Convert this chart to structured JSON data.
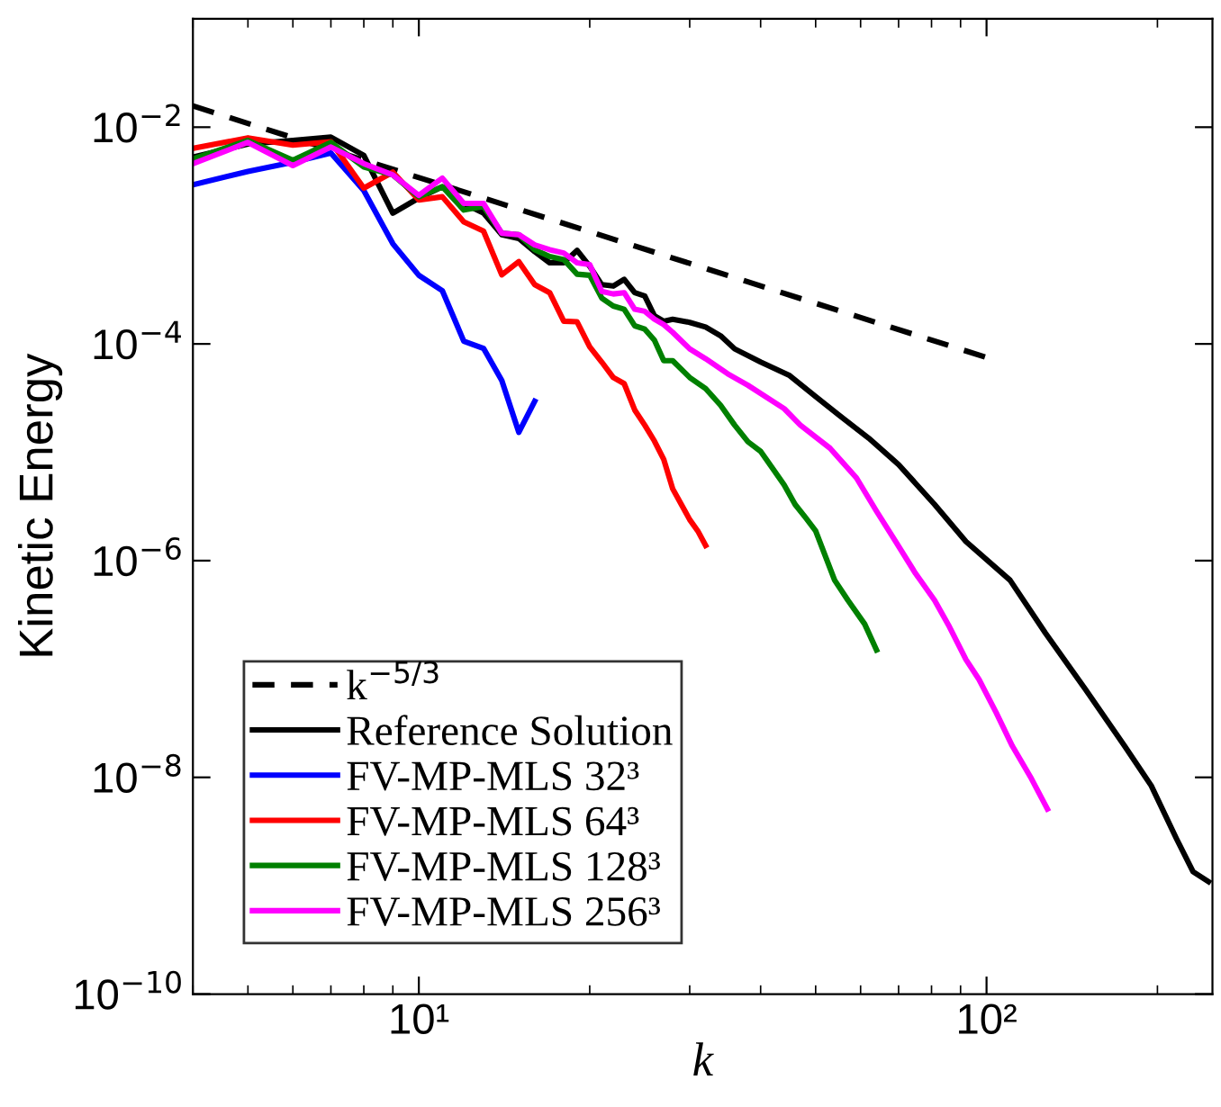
{
  "chart_data": {
    "type": "line",
    "xlabel": "k",
    "ylabel": "Kinetic Energy",
    "log": "xy",
    "grid": false,
    "legend": "bottom left",
    "xlim": [
      4,
      250
    ],
    "ylim": [
      1e-10,
      0.1
    ],
    "xticks": [
      {
        "value": 10,
        "label": "10¹"
      },
      {
        "value": 100,
        "label": "10²"
      }
    ],
    "yticks": [
      {
        "value": 1e-10,
        "label": "10$^{−10}$"
      },
      {
        "value": 1e-08,
        "label": "10$^{−8}$"
      },
      {
        "value": 1e-06,
        "label": "10$^{−6}$"
      },
      {
        "value": 0.0001,
        "label": "10$^{−4}$"
      },
      {
        "value": 0.01,
        "label": "10$^{−2}$"
      }
    ],
    "series": [
      {
        "name": "k$^{−5/3}$",
        "color": "#000000",
        "line_style": "dashed",
        "x": [
          4,
          100
        ],
        "values": [
          0.0157,
          7.5e-05
        ]
      },
      {
        "name": "Reference Solution",
        "color": "#000000",
        "x": [
          4,
          5,
          6,
          7,
          8,
          9,
          10,
          11,
          12,
          13,
          14,
          15,
          16,
          17,
          18,
          19,
          20,
          21,
          22,
          23,
          24,
          25,
          26,
          27,
          28,
          30,
          32,
          34,
          36,
          40,
          45,
          50,
          55,
          62,
          70,
          81,
          92,
          110,
          127,
          149,
          175,
          195,
          216,
          231,
          246
        ],
        "values": [
          0.0053,
          0.007,
          0.00755,
          0.0081,
          0.0055,
          0.00161,
          0.00222,
          0.00282,
          0.00198,
          0.00161,
          0.00102,
          0.00094,
          0.00071,
          0.00056,
          0.00056,
          0.00073,
          0.00052,
          0.000352,
          0.000342,
          0.000394,
          0.000297,
          0.000277,
          0.000182,
          0.000162,
          0.000169,
          0.000158,
          0.000143,
          0.000119,
          9e-05,
          6.8e-05,
          5.1e-05,
          3.27e-05,
          2.2e-05,
          1.35e-05,
          7.7e-06,
          3.3e-06,
          1.5e-06,
          6.6e-07,
          2.14e-07,
          6.6e-08,
          1.95e-08,
          8.4e-09,
          2.72e-09,
          1.35e-09,
          1.09e-09
        ]
      },
      {
        "name": "FV-MP-MLS 32³",
        "color": "#0000ff",
        "x": [
          4,
          5,
          6,
          7,
          8,
          9,
          10,
          11,
          12,
          13,
          14,
          15,
          16
        ],
        "values": [
          0.00294,
          0.0039,
          0.00474,
          0.00578,
          0.0026,
          0.00084,
          0.00043,
          0.00031,
          0.000106,
          9.1e-05,
          4.6e-05,
          1.53e-05,
          2.96e-05
        ]
      },
      {
        "name": "FV-MP-MLS 64³",
        "color": "#ff0000",
        "x": [
          4,
          5,
          6,
          7,
          8,
          9,
          10,
          11,
          12,
          13,
          14,
          15,
          16,
          17,
          18,
          19,
          20,
          21,
          22,
          23,
          24,
          25,
          26,
          27,
          28,
          29,
          30,
          31,
          32
        ],
        "values": [
          0.00638,
          0.00797,
          0.00684,
          0.00734,
          0.00274,
          0.00385,
          0.00213,
          0.00228,
          0.00134,
          0.0011,
          0.000434,
          0.000575,
          0.000352,
          0.000297,
          0.000162,
          0.00016,
          9.4e-05,
          6.8e-05,
          4.9e-05,
          4.3e-05,
          2.46e-05,
          1.78e-05,
          1.27e-05,
          8.6e-06,
          4.6e-06,
          3.3e-06,
          2.39e-06,
          1.88e-06,
          1.38e-06
        ]
      },
      {
        "name": "FV-MP-MLS 128³",
        "color": "#008000",
        "x": [
          4,
          5,
          6,
          7,
          8,
          9,
          10,
          11,
          12,
          13,
          14,
          15,
          16,
          17,
          18,
          19,
          20,
          21,
          22,
          23,
          24,
          25,
          26,
          27,
          28,
          30,
          32,
          34,
          36,
          38,
          40,
          42,
          44,
          46,
          48,
          50,
          54,
          57,
          61,
          64
        ],
        "values": [
          0.00509,
          0.00755,
          0.00495,
          0.00724,
          0.0043,
          0.00363,
          0.00228,
          0.00282,
          0.00172,
          0.00185,
          0.00105,
          0.00102,
          0.00074,
          0.00064,
          0.0006,
          0.00044,
          0.00043,
          0.000265,
          0.000224,
          0.000209,
          0.000147,
          0.000137,
          0.000108,
          7e-05,
          7e-05,
          4.9e-05,
          3.87e-05,
          2.72e-05,
          1.78e-05,
          1.25e-05,
          1.02e-05,
          7.1e-06,
          5e-06,
          3.3e-06,
          2.49e-06,
          1.88e-06,
          6.6e-07,
          4.3e-07,
          2.6e-07,
          1.5e-07
        ]
      },
      {
        "name": "FV-MP-MLS 256³",
        "color": "#ff00ff",
        "x": [
          4,
          5,
          6,
          7,
          8,
          9,
          10,
          11,
          12,
          13,
          14,
          15,
          16,
          17,
          18,
          19,
          20,
          21,
          22,
          23,
          24,
          25,
          26,
          27,
          28,
          30,
          32,
          35,
          38,
          44,
          47,
          53,
          59,
          64,
          69,
          75,
          81,
          86,
          92,
          97,
          104,
          111,
          120,
          128
        ],
        "values": [
          0.00461,
          0.00724,
          0.00442,
          0.00656,
          0.00461,
          0.00363,
          0.00235,
          0.00339,
          0.00198,
          0.00198,
          0.00105,
          0.00102,
          0.00082,
          0.00074,
          0.00069,
          0.00056,
          0.00054,
          0.000305,
          0.000289,
          0.000297,
          0.000209,
          0.0002,
          0.000169,
          0.000151,
          0.000128,
          9e-05,
          7.3e-05,
          5.3e-05,
          4.15e-05,
          2.53e-05,
          1.78e-05,
          1.09e-05,
          5.8e-06,
          2.86e-06,
          1.53e-06,
          7.6e-07,
          4.3e-07,
          2.46e-07,
          1.22e-07,
          8e-08,
          3.95e-08,
          1.95e-08,
          9.7e-09,
          5.1e-09
        ]
      }
    ]
  }
}
